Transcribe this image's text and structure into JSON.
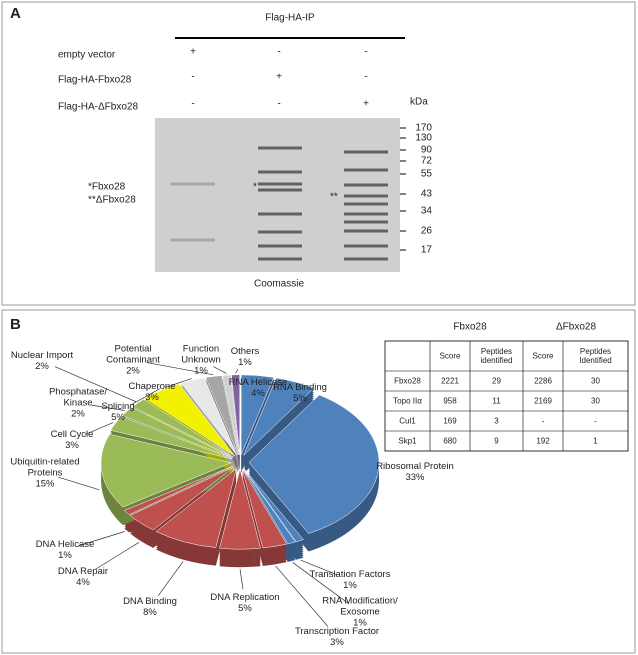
{
  "panel_a": {
    "label": "A",
    "header": "Flag-HA-IP",
    "rows": [
      {
        "name": "empty vector",
        "lanes": [
          "+",
          "-",
          "-"
        ]
      },
      {
        "name": "Flag-HA-Fbxo28",
        "lanes": [
          "-",
          "+",
          "-"
        ]
      },
      {
        "name": "Flag-HA-ΔFbxo28",
        "lanes": [
          "-",
          "-",
          "+"
        ]
      }
    ],
    "kda": "kDa",
    "markers": [
      170,
      130,
      90,
      72,
      55,
      43,
      34,
      26,
      17
    ],
    "band_labels": [
      "*Fbxo28",
      "**ΔFbxo28"
    ],
    "lane_marks": [
      "*",
      "**"
    ],
    "stain": "Coomassie"
  },
  "panel_b_label": "B",
  "chart_data": {
    "type": "pie",
    "categories": [
      "RNA Helicase",
      "RNA Binding",
      "Ribosomal Protein",
      "Translation Factors",
      "RNA Modification/\nExosome",
      "Transcription Factor",
      "DNA Replication",
      "DNA Binding",
      "DNA Repair",
      "DNA Helicase",
      "Ubiquitin-related\nProteins",
      "Cell Cycle",
      "Phosphatase/\nKinase",
      "Nuclear Import",
      "Splicing",
      "Chaperone",
      "Potential\nContaminant",
      "Function\nUnknown",
      "Others"
    ],
    "values": [
      4,
      5,
      33,
      1,
      1,
      3,
      5,
      8,
      4,
      1,
      15,
      3,
      2,
      2,
      5,
      3,
      2,
      1,
      1
    ],
    "value_labels": [
      "4%",
      "5%",
      "33%",
      "1%",
      "1%",
      "3%",
      "5%",
      "8%",
      "4%",
      "1%",
      "15%",
      "3%",
      "2%",
      "2%",
      "5%",
      "3%",
      "2%",
      "1%",
      "1%"
    ],
    "colors": [
      "#4f81bd",
      "#4f81bd",
      "#4f81bd",
      "#4f81bd",
      "#4f81bd",
      "#c0504d",
      "#c0504d",
      "#c0504d",
      "#c0504d",
      "#c0504d",
      "#9bbb59",
      "#9bbb59",
      "#9bbb59",
      "#9bbb59",
      "#f2f200",
      "#e8e8e8",
      "#a6a6a6",
      "#d0d0d0",
      "#8064a2"
    ]
  },
  "table": {
    "groups": [
      "Fbxo28",
      "ΔFbxo28"
    ],
    "columns": [
      "Score",
      "Peptides\nidentified",
      "Score",
      "Peptides\nIdentified"
    ],
    "rows": [
      [
        "Fbxo28",
        2221,
        29,
        2286,
        30
      ],
      [
        "Topo IIα",
        958,
        11,
        2169,
        30
      ],
      [
        "Cul1",
        169,
        3,
        "-",
        "-"
      ],
      [
        "Skp1",
        680,
        9,
        192,
        1
      ]
    ]
  }
}
